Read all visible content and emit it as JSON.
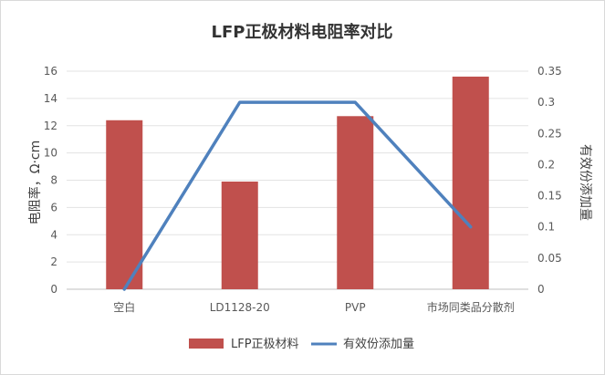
{
  "chart_data": {
    "type": "bar",
    "title": "LFP正极材料电阻率对比",
    "categories": [
      "空白",
      "LD1128-20",
      "PVP",
      "市场同类品分散剂"
    ],
    "ylabel": "电阻率，Ω·cm",
    "y2label": "有效份添加量",
    "ylim": [
      0,
      16
    ],
    "y2lim": [
      0,
      0.35
    ],
    "yticks": [
      "0",
      "2",
      "4",
      "6",
      "8",
      "10",
      "12",
      "14",
      "16"
    ],
    "y2ticks": [
      "0",
      "0.05",
      "0.1",
      "0.15",
      "0.2",
      "0.25",
      "0.3",
      "0.35"
    ],
    "grid": true,
    "legend_position": "bottom",
    "series": [
      {
        "name": "LFP正极材料",
        "type": "bar",
        "axis": "left",
        "color": "#c0504d",
        "values": [
          12.4,
          7.9,
          12.7,
          15.6
        ]
      },
      {
        "name": "有效份添加量",
        "type": "line",
        "axis": "right",
        "color": "#4f81bd",
        "values": [
          0,
          0.3,
          0.3,
          0.1
        ]
      }
    ]
  }
}
